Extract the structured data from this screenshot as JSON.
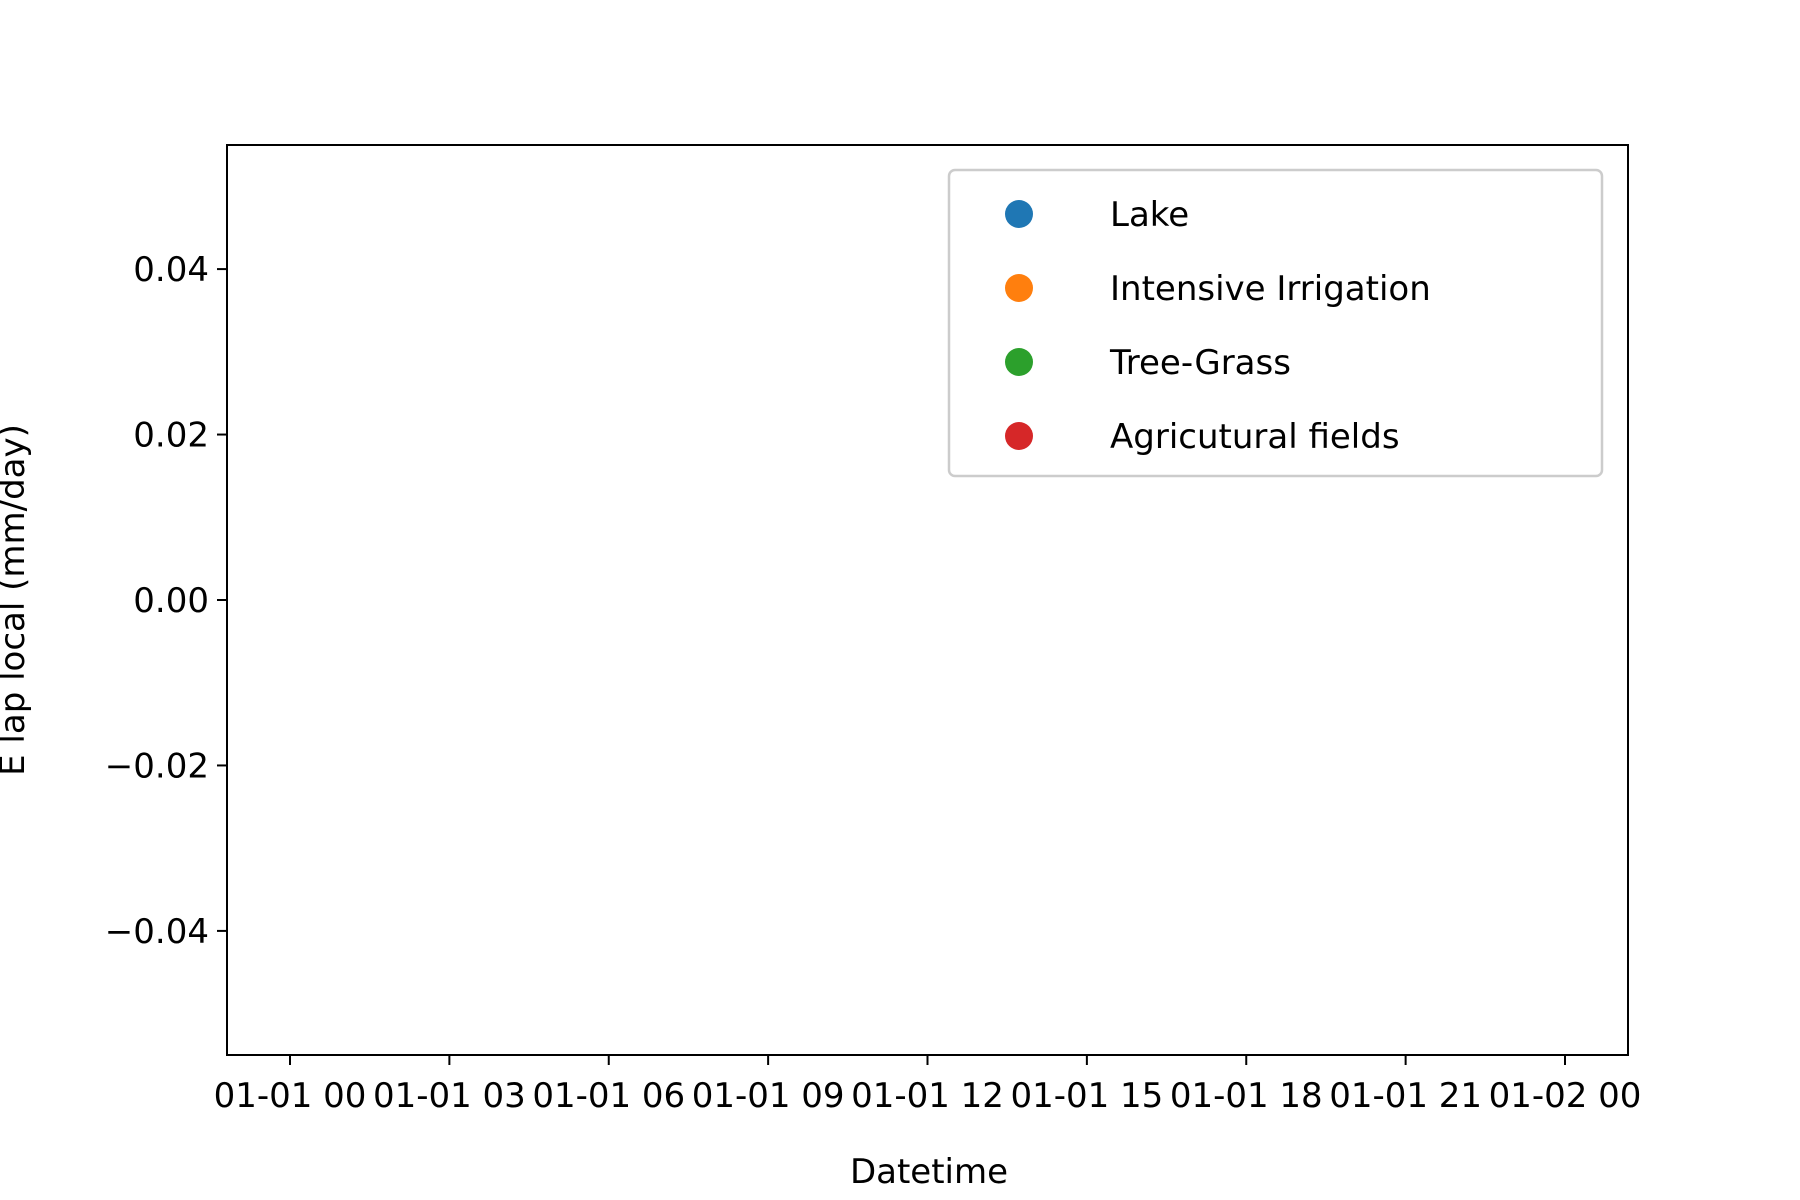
{
  "chart_data": {
    "type": "scatter",
    "title": "",
    "xlabel": "Datetime",
    "ylabel": "E lap local (mm/day)",
    "x_tick_labels": [
      "01-01 00",
      "01-01 03",
      "01-01 06",
      "01-01 09",
      "01-01 12",
      "01-01 15",
      "01-01 18",
      "01-01 21",
      "01-02 00"
    ],
    "y_ticks": [
      -0.04,
      -0.02,
      0.0,
      0.02,
      0.04
    ],
    "y_tick_labels": [
      "−0.04",
      "−0.02",
      "0.00",
      "0.02",
      "0.04"
    ],
    "ylim": [
      -0.055,
      0.055
    ],
    "grid": false,
    "legend_position": "top-right",
    "series": [
      {
        "name": "Lake",
        "color": "#1f77b4",
        "values": []
      },
      {
        "name": "Intensive Irrigation",
        "color": "#ff7f0e",
        "values": []
      },
      {
        "name": "Tree-Grass",
        "color": "#2ca02c",
        "values": []
      },
      {
        "name": "Agricutural fields",
        "color": "#d62728",
        "values": []
      }
    ]
  }
}
